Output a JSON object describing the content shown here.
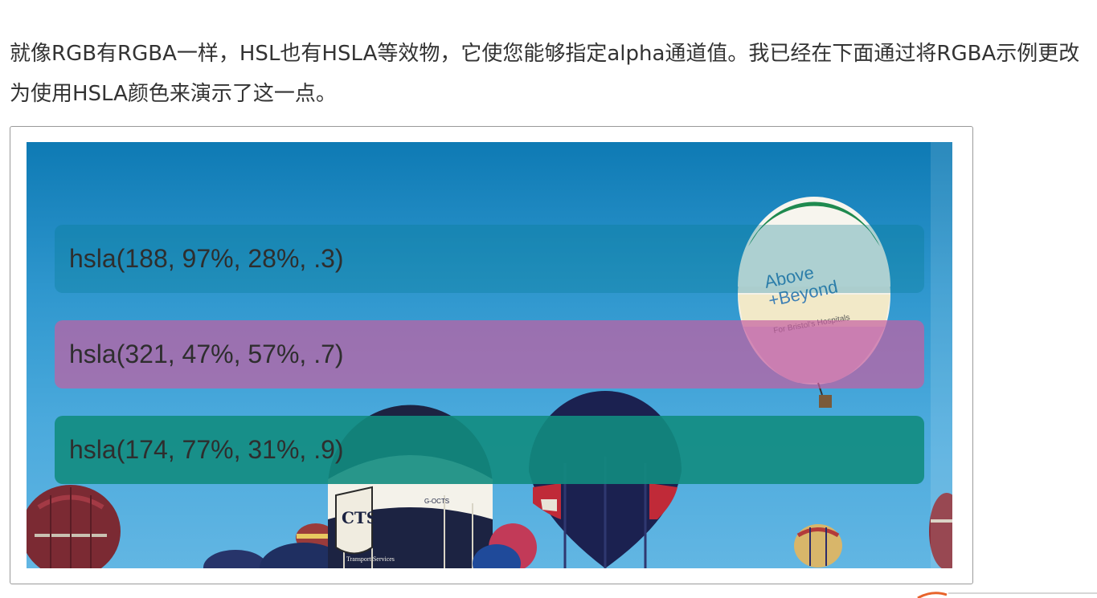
{
  "article": {
    "paragraph": "就像RGB有RGBA一样，HSL也有HSLA等效物，它使您能够指定alpha通道值。我已经在下面通过将RGBA示例更改为使用HSLA颜色来演示了这一点。"
  },
  "demo": {
    "bars": [
      {
        "label": "hsla(188, 97%, 28%, .3)",
        "color": "hsla(188, 97%, 28%, .3)"
      },
      {
        "label": "hsla(321, 47%, 57%, .7)",
        "color": "hsla(321, 47%, 57%, .7)"
      },
      {
        "label": "hsla(174, 77%, 31%, .9)",
        "color": "hsla(174, 77%, 31%, .9)"
      }
    ],
    "background_image": {
      "balloon_texts": [
        "Above",
        "+Beyond",
        "For Bristol's Hospitals",
        "CTS",
        "G-OCTS",
        "Transport Services"
      ]
    }
  }
}
